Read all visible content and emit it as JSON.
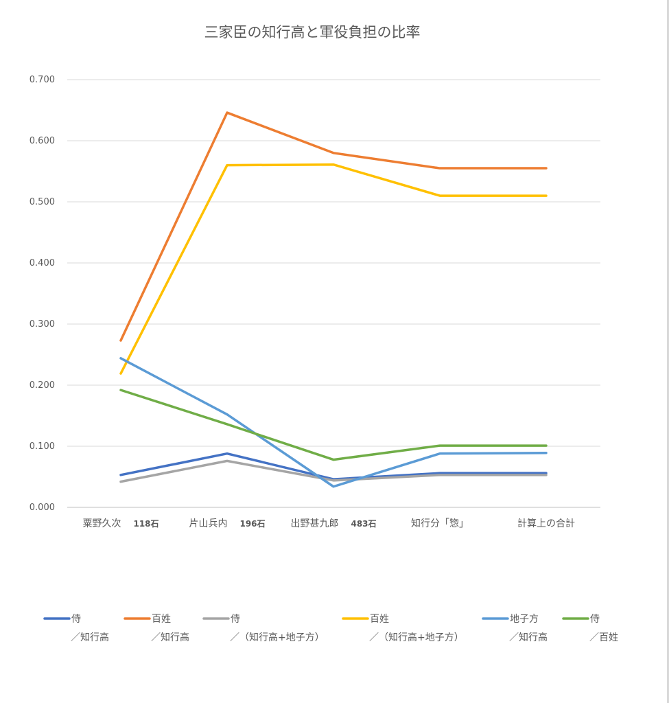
{
  "chart_data": {
    "type": "line",
    "title": "三家臣の知行高と軍役負担の比率",
    "categories": [
      {
        "name": "粟野久次",
        "note": "118石"
      },
      {
        "name": "片山兵内",
        "note": "196石"
      },
      {
        "name": "出野甚九郎",
        "note": "483石"
      },
      {
        "name": "知行分「惣」",
        "note": ""
      },
      {
        "name": "計算上の合計",
        "note": ""
      }
    ],
    "ylim": [
      0,
      0.7
    ],
    "yticks": [
      "0.000",
      "0.100",
      "0.200",
      "0.300",
      "0.400",
      "0.500",
      "0.600",
      "0.700"
    ],
    "grid": true,
    "legend_position": "bottom",
    "series": [
      {
        "name": "侍",
        "sub": "／知行高",
        "color": "#4472C4",
        "values": [
          0.053,
          0.088,
          0.046,
          0.056,
          0.056
        ]
      },
      {
        "name": "百姓",
        "sub": "／知行高",
        "color": "#ED7D31",
        "values": [
          0.273,
          0.646,
          0.58,
          0.555,
          0.555
        ]
      },
      {
        "name": "侍",
        "sub": "／（知行高+地子方）",
        "color": "#A5A5A5",
        "values": [
          0.042,
          0.076,
          0.044,
          0.053,
          0.053
        ]
      },
      {
        "name": "百姓",
        "sub": "／（知行高+地子方）",
        "color": "#FFC000",
        "values": [
          0.219,
          0.56,
          0.561,
          0.51,
          0.51
        ]
      },
      {
        "name": "地子方",
        "sub": "／知行高",
        "color": "#5B9BD5",
        "values": [
          0.244,
          0.152,
          0.034,
          0.088,
          0.089
        ]
      },
      {
        "name": "侍",
        "sub": "／百姓",
        "color": "#70AD47",
        "values": [
          0.192,
          0.136,
          0.078,
          0.101,
          0.101
        ]
      }
    ]
  }
}
